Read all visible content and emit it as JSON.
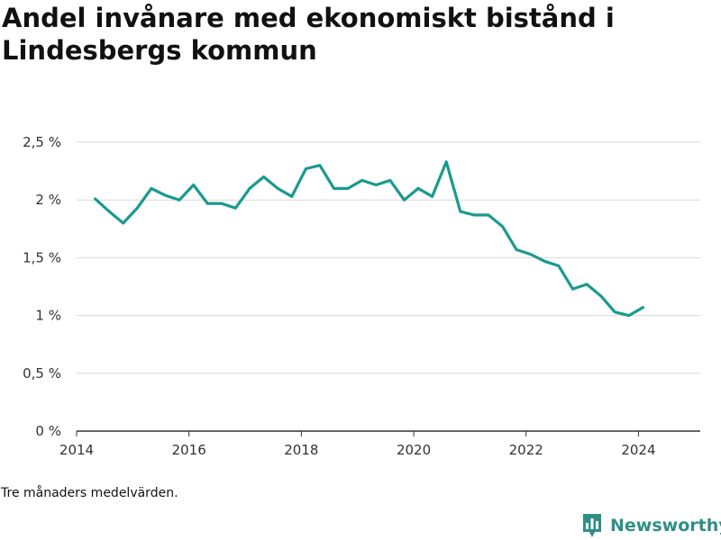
{
  "title": "Andel invånare med ekonomiskt bistånd i Lindesbergs kommun",
  "note": "Tre månaders medelvärden.",
  "brand": {
    "name": "Newsworthy",
    "icon": "bar-chart-pin-icon",
    "color": "#2f8f86"
  },
  "colors": {
    "line": "#1a9a8e",
    "grid": "#d9d9d9",
    "axis": "#333333"
  },
  "chart_data": {
    "type": "line",
    "title": "Andel invånare med ekonomiskt bistånd i Lindesbergs kommun",
    "xlabel": "",
    "ylabel": "",
    "xlim": [
      2014,
      2025.1
    ],
    "ylim": [
      0,
      2.5
    ],
    "yticks": [
      0,
      0.5,
      1,
      1.5,
      2,
      2.5
    ],
    "ytick_labels": [
      "0 %",
      "0,5 %",
      "1 %",
      "1,5 %",
      "2 %",
      "2,5 %"
    ],
    "xticks": [
      2014,
      2016,
      2018,
      2020,
      2022,
      2024
    ],
    "xtick_labels": [
      "2014",
      "2016",
      "2018",
      "2020",
      "2022",
      "2024"
    ],
    "grid": true,
    "legend": "none",
    "series": [
      {
        "x": [
          2014.33,
          2014.58,
          2014.83,
          2015.08,
          2015.33,
          2015.58,
          2015.83,
          2016.08,
          2016.33,
          2016.58,
          2016.83,
          2017.08,
          2017.33,
          2017.58,
          2017.83,
          2018.08,
          2018.33,
          2018.58,
          2018.83,
          2019.08,
          2019.33,
          2019.58,
          2019.83,
          2020.08,
          2020.33,
          2020.58,
          2020.83,
          2021.08,
          2021.33,
          2021.58,
          2021.83,
          2022.08,
          2022.33,
          2022.58,
          2022.83,
          2023.08,
          2023.33,
          2023.58,
          2023.83,
          2024.08
        ],
        "values": [
          2.01,
          1.9,
          1.8,
          1.93,
          2.1,
          2.04,
          2.0,
          2.13,
          1.97,
          1.97,
          1.93,
          2.1,
          2.2,
          2.1,
          2.03,
          2.27,
          2.3,
          2.1,
          2.1,
          2.17,
          2.13,
          2.17,
          2.0,
          2.1,
          2.03,
          2.33,
          1.9,
          1.87,
          1.87,
          1.77,
          1.57,
          1.53,
          1.47,
          1.43,
          1.23,
          1.27,
          1.17,
          1.03,
          1.0,
          1.07
        ]
      }
    ]
  }
}
